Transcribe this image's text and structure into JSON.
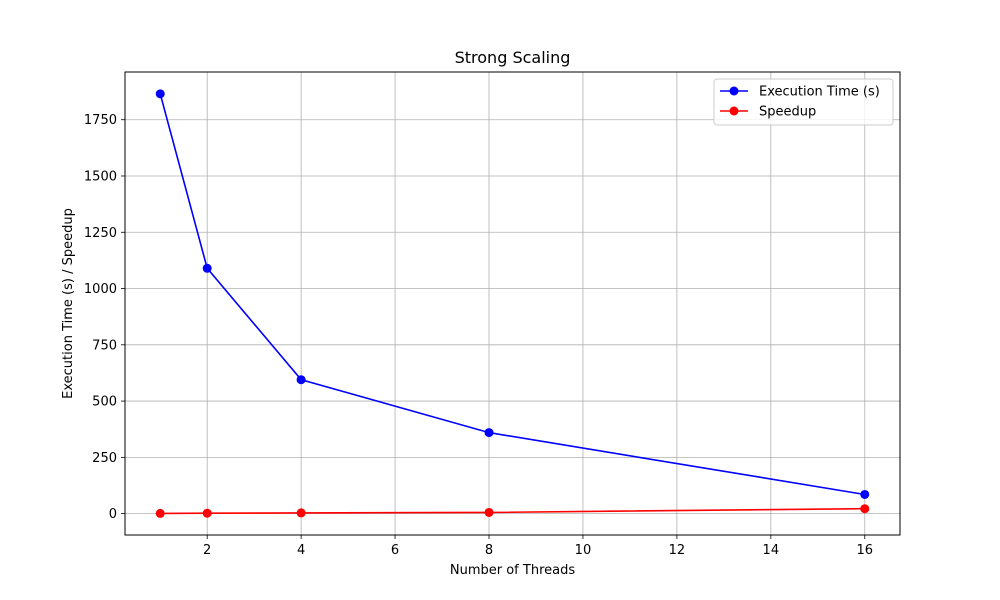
{
  "chart_data": {
    "type": "line",
    "title": "Strong Scaling",
    "xlabel": "Number of Threads",
    "ylabel": "Execution Time (s) / Speedup",
    "x": [
      1,
      2,
      4,
      8,
      16
    ],
    "series": [
      {
        "name": "Execution Time (s)",
        "color": "#0000ff",
        "marker": "circle",
        "values": [
          1865,
          1090,
          595,
          360,
          85
        ]
      },
      {
        "name": "Speedup",
        "color": "#ff0000",
        "marker": "circle",
        "values": [
          1.0,
          1.7,
          3.1,
          5.2,
          21.9
        ]
      }
    ],
    "xlim": [
      0.25,
      16.75
    ],
    "ylim": [
      -95,
      1962
    ],
    "xticks": [
      2,
      4,
      6,
      8,
      10,
      12,
      14,
      16
    ],
    "yticks": [
      0,
      250,
      500,
      750,
      1000,
      1250,
      1500,
      1750
    ],
    "grid": true,
    "legend_position": "top-right"
  }
}
